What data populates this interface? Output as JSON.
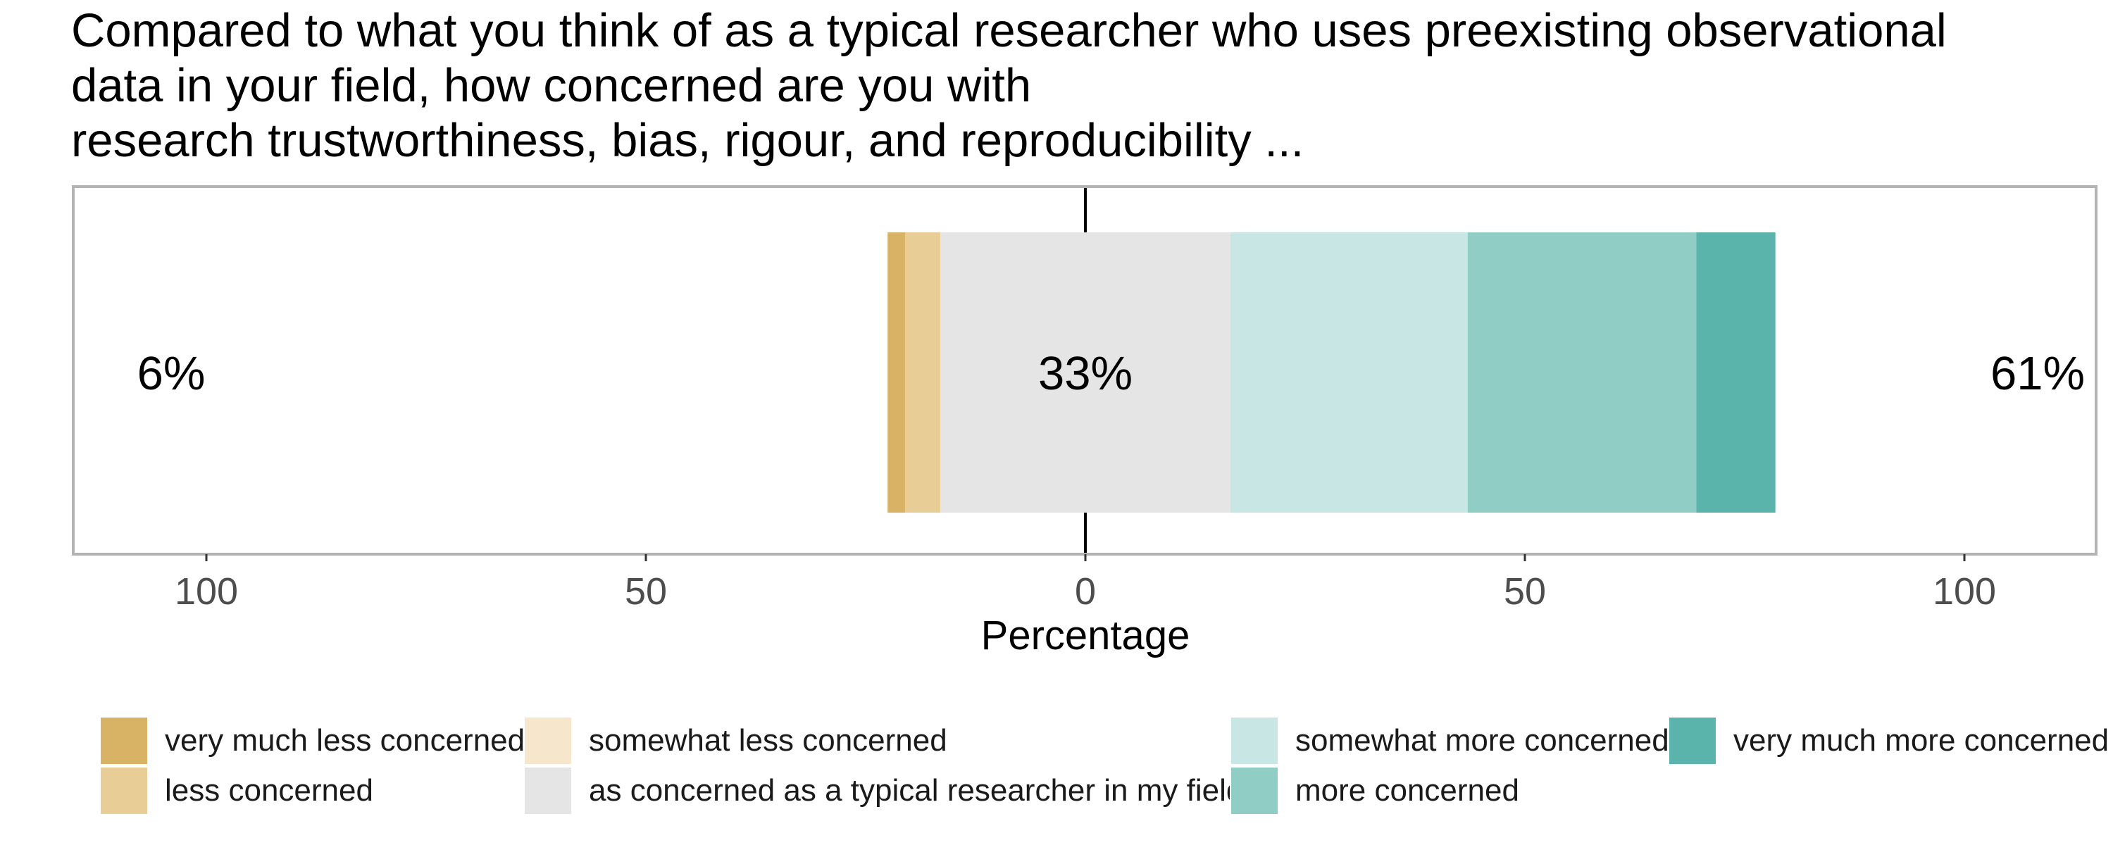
{
  "chart_data": {
    "type": "bar",
    "orientation": "horizontal",
    "layout": "diverging-stacked",
    "title_lines": [
      "Compared to what you think of as a typical researcher who uses preexisting observational",
      "data in your field, how concerned are you with",
      "research trustworthiness, bias, rigour, and reproducibility ..."
    ],
    "xlabel": "Percentage",
    "xlim": [
      -100,
      100
    ],
    "xticks": [
      {
        "value": -100,
        "label": "100"
      },
      {
        "value": -50,
        "label": "50"
      },
      {
        "value": 0,
        "label": "0"
      },
      {
        "value": 50,
        "label": "50"
      },
      {
        "value": 100,
        "label": "100"
      }
    ],
    "legend_position": "bottom",
    "series": [
      {
        "name": "very much less concerned",
        "value": 2,
        "side": "left",
        "color": "#D8B365"
      },
      {
        "name": "less concerned",
        "value": 4,
        "side": "left",
        "color": "#E8CD96"
      },
      {
        "name": "somewhat less concerned",
        "value": 0,
        "side": "left",
        "color": "#F5E6CC"
      },
      {
        "name": "as concerned as a typical researcher in my field",
        "value": 33,
        "side": "neutral",
        "color": "#E5E5E5"
      },
      {
        "name": "somewhat more concerned",
        "value": 27,
        "side": "right",
        "color": "#C8E6E4"
      },
      {
        "name": "more concerned",
        "value": 26,
        "side": "right",
        "color": "#90CDC5"
      },
      {
        "name": "very much more concerned",
        "value": 9,
        "side": "right",
        "color": "#5AB4AC"
      }
    ],
    "annotations": {
      "left": "6%",
      "center": "33%",
      "right": "61%"
    },
    "legend_order": [
      "very much less concerned",
      "less concerned",
      "somewhat less concerned",
      "as concerned as a typical researcher in my field",
      "somewhat more concerned",
      "more concerned",
      "very much more concerned"
    ],
    "grid": true,
    "colors": {
      "panel_border": "#B3B3B3",
      "grid": "#EBEBEB",
      "tick_text": "#4D4D4D",
      "zero_line": "#000000"
    }
  }
}
